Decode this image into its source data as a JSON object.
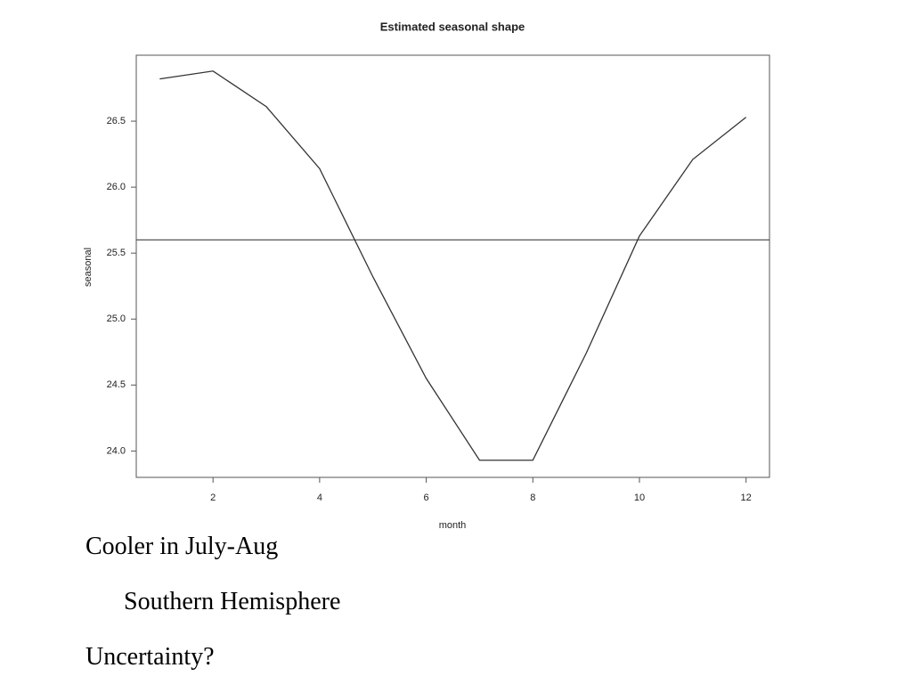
{
  "chart_data": {
    "type": "line",
    "title": "Estimated seasonal shape",
    "x_label": "month",
    "y_label": "seasonal",
    "x": [
      1,
      2,
      3,
      4,
      5,
      6,
      7,
      8,
      9,
      10,
      11,
      12
    ],
    "series": [
      {
        "color": "#333333",
        "values": [
          26.82,
          26.88,
          26.61,
          26.14,
          25.32,
          24.55,
          23.93,
          23.93,
          24.74,
          25.63,
          26.21,
          26.53
        ]
      }
    ],
    "hline": 25.6,
    "xlim": [
      0.56,
      12.44
    ],
    "xticks": [
      2,
      4,
      6,
      8,
      10,
      12
    ],
    "ylim": [
      23.8,
      27.0
    ],
    "yticks": [
      {
        "value": 24,
        "label": "24.0"
      },
      24.5,
      {
        "value": 25,
        "label": "25.0"
      },
      25.5,
      {
        "value": 26,
        "label": "26.0"
      },
      26.5
    ],
    "grid": false
  },
  "bullets": [
    {
      "text": "Cooler in July-Aug",
      "level": 0
    },
    {
      "text": "Southern Hemisphere",
      "level": 1
    },
    {
      "text": "Uncertainty?",
      "level": 0
    }
  ]
}
